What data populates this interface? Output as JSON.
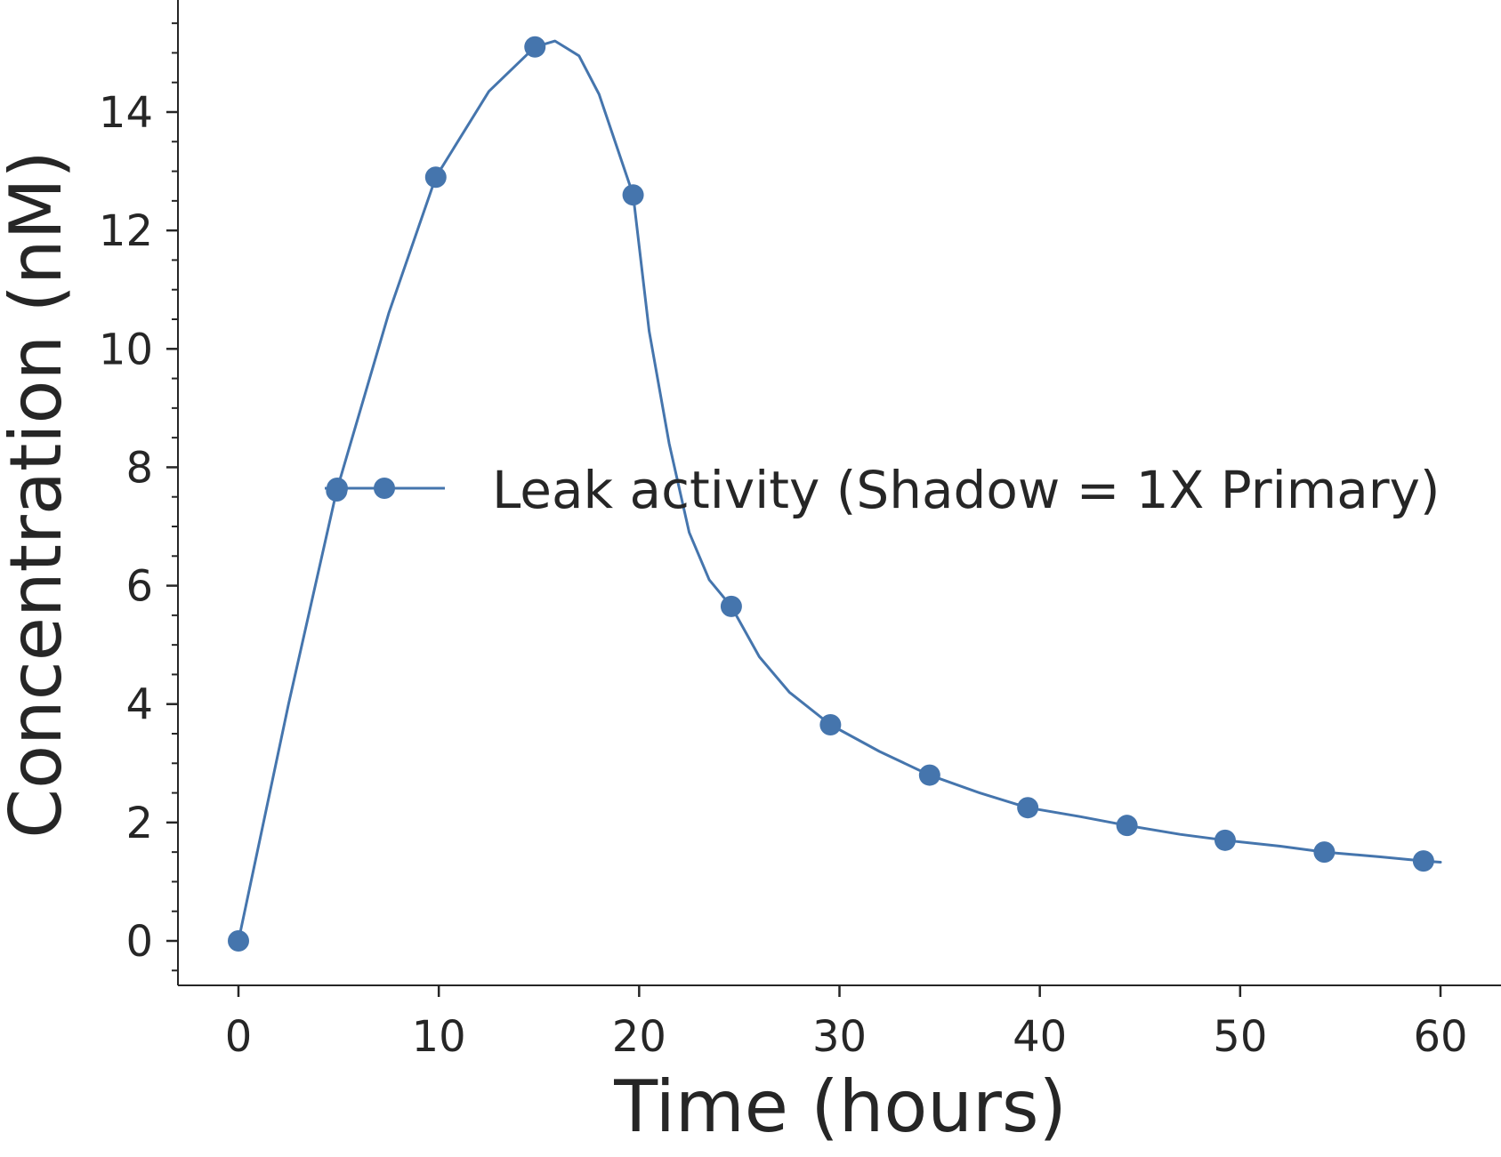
{
  "chart_data": {
    "type": "line",
    "xlabel": "Time (hours)",
    "ylabel": "Concentration (nM)",
    "xlim": [
      -3,
      63
    ],
    "ylim": [
      -0.75,
      16
    ],
    "xticks": [
      0,
      10,
      20,
      30,
      40,
      50,
      60
    ],
    "xtick_labels": [
      "0",
      "10",
      "20",
      "30",
      "40",
      "50",
      "60"
    ],
    "yticks": [
      0,
      2,
      4,
      6,
      8,
      10,
      12,
      14
    ],
    "ytick_labels": [
      "0",
      "2",
      "4",
      "6",
      "8",
      "10",
      "12",
      "14"
    ],
    "y_minor_step": 0.5,
    "grid": false,
    "legend_position": "center-right",
    "series": [
      {
        "name": "Leak activity (Shadow = 1X Primary)",
        "color": "#4575ad",
        "marker": "circle",
        "markers": {
          "x": [
            0,
            4.9,
            9.85,
            14.8,
            19.7,
            24.6,
            29.55,
            34.5,
            39.4,
            44.35,
            49.25,
            54.2,
            59.15
          ],
          "y": [
            0,
            7.6,
            12.9,
            15.1,
            12.6,
            5.65,
            3.65,
            2.8,
            2.25,
            1.95,
            1.7,
            1.5,
            1.35
          ]
        },
        "curve": {
          "x": [
            0,
            2.5,
            4.9,
            7.5,
            9.85,
            12.5,
            14.8,
            15.8,
            17,
            18,
            19.2,
            19.7,
            20.5,
            21.5,
            22.5,
            23.5,
            24.6,
            26,
            27.5,
            29.55,
            32,
            34.5,
            37,
            39.4,
            42,
            44.35,
            47,
            49.25,
            52,
            54.2,
            57,
            59.15,
            60
          ],
          "y": [
            0,
            4.0,
            7.6,
            10.6,
            12.9,
            14.35,
            15.1,
            15.2,
            14.95,
            14.3,
            13.1,
            12.6,
            10.3,
            8.4,
            6.9,
            6.1,
            5.65,
            4.8,
            4.2,
            3.65,
            3.2,
            2.8,
            2.5,
            2.25,
            2.1,
            1.95,
            1.8,
            1.7,
            1.6,
            1.5,
            1.42,
            1.35,
            1.33
          ]
        }
      }
    ]
  }
}
